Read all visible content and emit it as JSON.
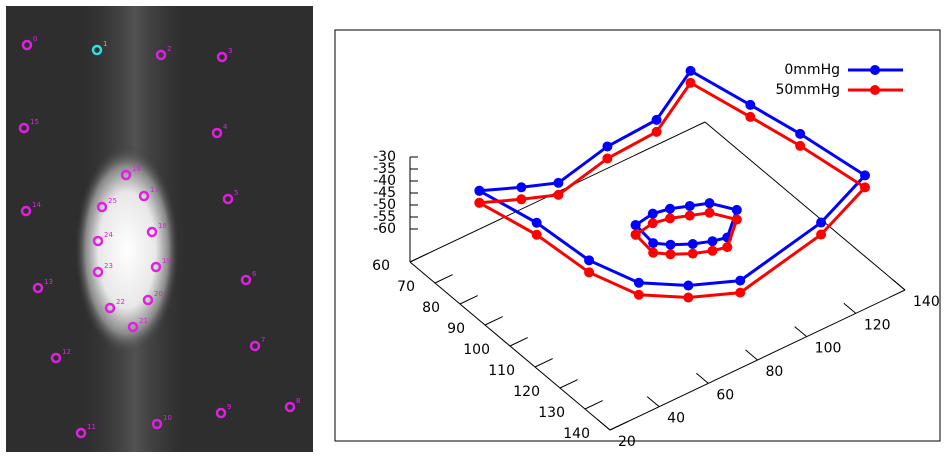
{
  "image_panel": {
    "markers": [
      {
        "label": "0",
        "color": "#e020e0"
      },
      {
        "label": "1",
        "color": "#30e0e0"
      },
      {
        "label": "2",
        "color": "#e020e0"
      },
      {
        "label": "3",
        "color": "#e020e0"
      },
      {
        "label": "4",
        "color": "#e020e0"
      },
      {
        "label": "5",
        "color": "#e020e0"
      },
      {
        "label": "6",
        "color": "#e020e0"
      },
      {
        "label": "7",
        "color": "#e020e0"
      },
      {
        "label": "8",
        "color": "#e020e0"
      },
      {
        "label": "9",
        "color": "#e020e0"
      },
      {
        "label": "10",
        "color": "#e020e0"
      },
      {
        "label": "11",
        "color": "#e020e0"
      },
      {
        "label": "12",
        "color": "#e020e0"
      },
      {
        "label": "13",
        "color": "#e020e0"
      },
      {
        "label": "14",
        "color": "#e020e0"
      },
      {
        "label": "15",
        "color": "#e020e0"
      },
      {
        "label": "16",
        "color": "#e020e0"
      },
      {
        "label": "17",
        "color": "#e020e0"
      },
      {
        "label": "18",
        "color": "#e020e0"
      },
      {
        "label": "19",
        "color": "#e020e0"
      },
      {
        "label": "20",
        "color": "#e020e0"
      },
      {
        "label": "21",
        "color": "#e020e0"
      },
      {
        "label": "22",
        "color": "#e020e0"
      },
      {
        "label": "23",
        "color": "#e020e0"
      },
      {
        "label": "24",
        "color": "#e020e0"
      },
      {
        "label": "25",
        "color": "#e020e0"
      }
    ]
  },
  "chart_data": {
    "type": "line3d",
    "series": [
      {
        "name": "0mmHg",
        "color": "#0000ff",
        "x": [
          73,
          78,
          82,
          78,
          77,
          67,
          86,
          102,
          124,
          132,
          138,
          132,
          124,
          110,
          91,
          73,
          null,
          106,
          105,
          106,
          108,
          110,
          116,
          123,
          122,
          120,
          117,
          114,
          106
        ],
        "y": [
          35,
          47,
          58,
          82,
          103,
          127,
          132,
          136,
          140,
          114,
          75,
          60,
          48,
          42,
          40,
          35,
          null,
          65,
          73,
          79,
          85,
          91,
          96,
          85,
          80,
          74,
          68,
          64,
          65
        ],
        "z": [
          -40,
          -40,
          -40,
          -40,
          -40,
          -40,
          -40,
          -40,
          -40,
          -40,
          -40,
          -40,
          -40,
          -40,
          -40,
          -40,
          null,
          -40,
          -40,
          -40,
          -40,
          -40,
          -40,
          -40,
          -40,
          -40,
          -40,
          -40,
          -40
        ]
      },
      {
        "name": "50mmHg",
        "color": "#ff0000",
        "x": [
          73,
          78,
          82,
          78,
          77,
          67,
          86,
          102,
          124,
          132,
          138,
          132,
          124,
          110,
          91,
          73,
          null,
          106,
          105,
          106,
          108,
          110,
          116,
          123,
          122,
          120,
          117,
          114,
          106
        ],
        "y": [
          35,
          47,
          58,
          82,
          103,
          127,
          132,
          136,
          140,
          114,
          75,
          60,
          48,
          42,
          40,
          35,
          null,
          65,
          73,
          79,
          85,
          91,
          96,
          85,
          80,
          74,
          68,
          64,
          65
        ],
        "z": [
          -45,
          -45,
          -45,
          -45,
          -45,
          -45,
          -45,
          -45,
          -45,
          -45,
          -45,
          -45,
          -45,
          -45,
          -45,
          -45,
          null,
          -44,
          -44,
          -44,
          -44,
          -44,
          -44,
          -44,
          -44,
          -44,
          -44,
          -44,
          -44
        ]
      }
    ],
    "xlim": [
      60,
      140
    ],
    "xticks": [
      60,
      70,
      80,
      90,
      100,
      110,
      120,
      130,
      140
    ],
    "ylim": [
      20,
      140
    ],
    "yticks": [
      20,
      40,
      60,
      80,
      100,
      120,
      140
    ],
    "zlim": [
      -60,
      -30
    ],
    "zticks": [
      -30,
      -35,
      -40,
      -45,
      -50,
      -55,
      -60
    ]
  }
}
